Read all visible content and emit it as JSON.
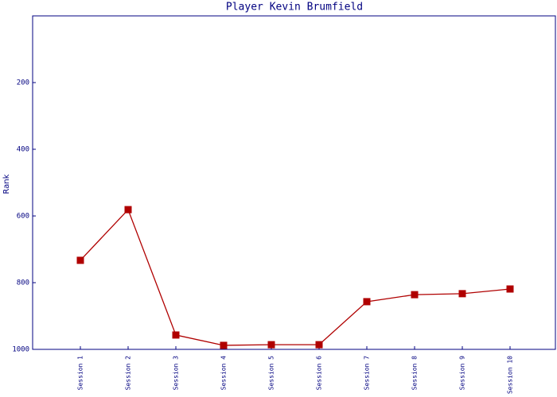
{
  "chart_data": {
    "type": "line",
    "title": "Player Kevin Brumfield",
    "y_label": "Rank",
    "categories": [
      "Session 1",
      "Session 2",
      "Session 3",
      "Session 4",
      "Session 5",
      "Session 6",
      "Session 7",
      "Session 8",
      "Session 9",
      "Session 10"
    ],
    "series": [
      {
        "name": "Rank",
        "color": "#b00000",
        "values": [
          733,
          581,
          957,
          988,
          986,
          986,
          857,
          836,
          833,
          819
        ]
      }
    ],
    "ylim": [
      0,
      1000
    ],
    "yticks": [
      200,
      400,
      600,
      800,
      1000
    ],
    "invert_y": true,
    "grid": false
  }
}
